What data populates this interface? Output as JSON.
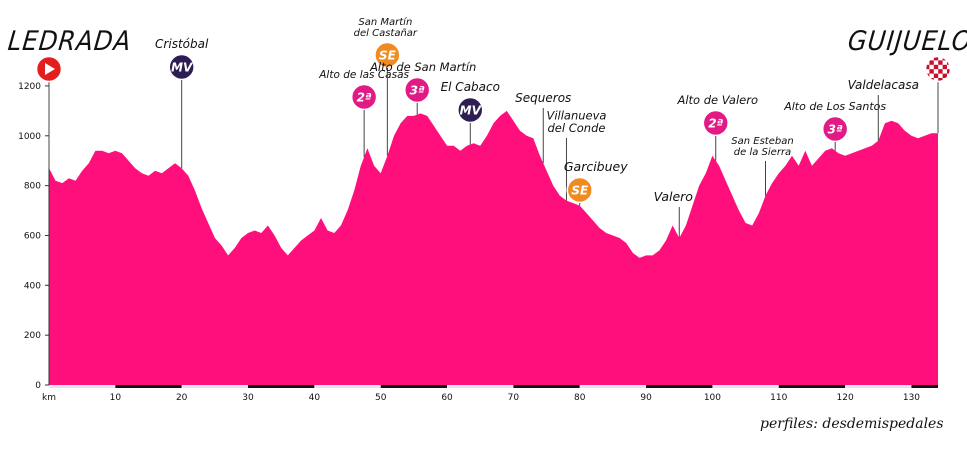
{
  "header": {
    "start": "LEDRADA",
    "finish": "GUIJUELO"
  },
  "credit": "perfiles: desdemispedales",
  "colors": {
    "profile_fill": "#ff0f7b",
    "mv_badge": "#2e1d52",
    "se_badge": "#f08b1f",
    "cat_badge": "#e21a86",
    "start_badge": "#e31e1e",
    "finish_badge": "#c8102e"
  },
  "chart_data": {
    "type": "area",
    "xlabel": "km",
    "ylabel": "",
    "xlim": [
      0,
      134
    ],
    "ylim": [
      0,
      1260
    ],
    "x_ticks": [
      10,
      20,
      30,
      40,
      50,
      60,
      70,
      80,
      90,
      100,
      110,
      120,
      130
    ],
    "y_ticks": [
      0,
      200,
      400,
      600,
      800,
      1000,
      1200
    ],
    "x": [
      0,
      1,
      2,
      3,
      4,
      5,
      6,
      7,
      8,
      9,
      10,
      11,
      12,
      13,
      14,
      15,
      16,
      17,
      18,
      19,
      20,
      21,
      22,
      23,
      24,
      25,
      26,
      27,
      28,
      29,
      30,
      31,
      32,
      33,
      34,
      35,
      36,
      37,
      38,
      39,
      40,
      41,
      42,
      43,
      44,
      45,
      46,
      47,
      48,
      49,
      50,
      51,
      52,
      53,
      54,
      55,
      56,
      57,
      58,
      59,
      60,
      61,
      62,
      63,
      64,
      65,
      66,
      67,
      68,
      69,
      70,
      71,
      72,
      73,
      74,
      75,
      76,
      77,
      78,
      79,
      80,
      81,
      82,
      83,
      84,
      85,
      86,
      87,
      88,
      89,
      90,
      91,
      92,
      93,
      94,
      95,
      96,
      97,
      98,
      99,
      100,
      101,
      102,
      103,
      104,
      105,
      106,
      107,
      108,
      109,
      110,
      111,
      112,
      113,
      114,
      115,
      116,
      117,
      118,
      119,
      120,
      121,
      122,
      123,
      124,
      125,
      126,
      127,
      128,
      129,
      130,
      131,
      132,
      133,
      134
    ],
    "y": [
      870,
      820,
      810,
      830,
      820,
      860,
      890,
      940,
      940,
      930,
      940,
      930,
      900,
      870,
      850,
      840,
      860,
      850,
      870,
      890,
      870,
      840,
      780,
      710,
      650,
      590,
      560,
      520,
      550,
      590,
      610,
      620,
      610,
      640,
      600,
      550,
      520,
      550,
      580,
      600,
      620,
      670,
      620,
      610,
      640,
      700,
      780,
      880,
      950,
      880,
      850,
      920,
      1000,
      1050,
      1080,
      1080,
      1090,
      1080,
      1040,
      1000,
      960,
      960,
      940,
      960,
      970,
      960,
      1000,
      1050,
      1080,
      1100,
      1060,
      1020,
      1000,
      990,
      920,
      860,
      800,
      760,
      740,
      730,
      720,
      690,
      660,
      630,
      610,
      600,
      590,
      570,
      530,
      510,
      520,
      520,
      540,
      580,
      640,
      590,
      640,
      720,
      800,
      850,
      920,
      880,
      820,
      760,
      700,
      650,
      640,
      690,
      760,
      810,
      850,
      880,
      920,
      880,
      940,
      880,
      910,
      940,
      950,
      930,
      920,
      930,
      940,
      950,
      960,
      980,
      1050,
      1060,
      1050,
      1020,
      1000,
      990,
      1000,
      1010,
      1010
    ],
    "markers": [
      {
        "name": "Cristóbal",
        "km": 20,
        "badge": "MV"
      },
      {
        "name": "Alto de las Casas",
        "km": 47.5,
        "badge": "2ª"
      },
      {
        "name": "San Martín del Castañar",
        "km": 51,
        "badge": "SE"
      },
      {
        "name": "Alto de San Martín",
        "km": 55.5,
        "badge": "3ª"
      },
      {
        "name": "El Cabaco",
        "km": 63.5,
        "badge": "MV"
      },
      {
        "name": "Sequeros",
        "km": 74.5,
        "badge": ""
      },
      {
        "name": "Villanueva del Conde",
        "km": 78,
        "badge": ""
      },
      {
        "name": "Garcibuey",
        "km": 80,
        "badge": "SE"
      },
      {
        "name": "Valero",
        "km": 95,
        "badge": ""
      },
      {
        "name": "Alto de Valero",
        "km": 100.5,
        "badge": "2ª"
      },
      {
        "name": "San Esteban de la Sierra",
        "km": 108,
        "badge": ""
      },
      {
        "name": "Alto de Los Santos",
        "km": 118.5,
        "badge": "3ª"
      },
      {
        "name": "Valdelacasa",
        "km": 125,
        "badge": ""
      }
    ]
  }
}
